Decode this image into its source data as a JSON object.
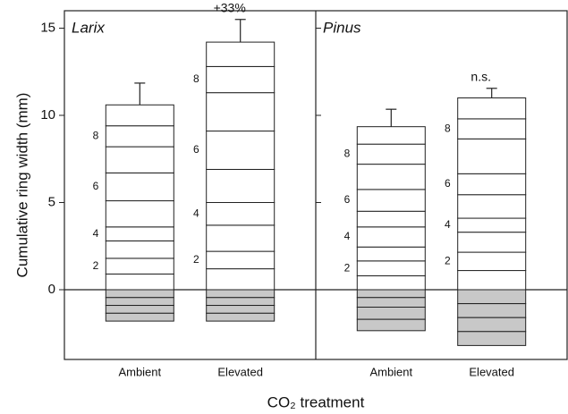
{
  "chart_data": {
    "type": "stacked_bar",
    "ylabel": "Cumulative ring width (mm)",
    "xlabel": "CO₂ treatment",
    "ylim": [
      -4,
      16
    ],
    "yticks": [
      0,
      5,
      10,
      15
    ],
    "segment_labels": [
      null,
      2,
      null,
      4,
      null,
      6,
      null,
      8,
      null
    ],
    "panels": [
      {
        "label": "Larix",
        "categories": [
          "Ambient",
          "Elevated"
        ],
        "bars": [
          {
            "segments": [
              0.9,
              0.9,
              1.0,
              0.8,
              1.5,
              1.6,
              1.5,
              1.2,
              1.2
            ],
            "negative_segments": [
              -0.45,
              -0.45,
              -0.45,
              -0.45
            ],
            "error": 1.25
          },
          {
            "segments": [
              1.2,
              1.0,
              1.5,
              1.3,
              1.9,
              2.2,
              2.2,
              1.5,
              1.4
            ],
            "negative_segments": [
              -0.45,
              -0.45,
              -0.45,
              -0.45
            ],
            "error": 1.3,
            "annotation": "+33%"
          }
        ]
      },
      {
        "label": "Pinus",
        "categories": [
          "Ambient",
          "Elevated"
        ],
        "bars": [
          {
            "segments": [
              0.8,
              0.85,
              0.8,
              1.15,
              0.9,
              1.25,
              1.45,
              1.15,
              1.0
            ],
            "negative_segments": [
              -0.45,
              -0.55,
              -0.7,
              -0.65
            ],
            "error": 1.0
          },
          {
            "segments": [
              1.1,
              1.05,
              1.15,
              0.8,
              1.35,
              1.2,
              2.0,
              1.15,
              1.2
            ],
            "negative_segments": [
              -0.8,
              -0.8,
              -0.8,
              -0.8
            ],
            "error": 0.55,
            "annotation": "n.s."
          }
        ]
      }
    ],
    "positive_color": "#ffffff",
    "negative_color": "#c8c8c8"
  }
}
